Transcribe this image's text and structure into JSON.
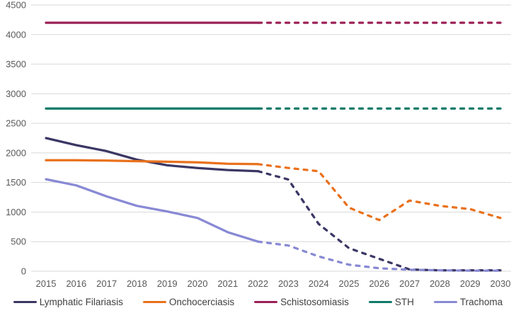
{
  "chart_data": {
    "type": "line",
    "title": "",
    "xlabel": "",
    "ylabel": "",
    "x": [
      2015,
      2016,
      2017,
      2018,
      2019,
      2020,
      2021,
      2022,
      2023,
      2024,
      2025,
      2026,
      2027,
      2028,
      2029,
      2030
    ],
    "x_tick_labels": [
      "2015",
      "2016",
      "2017",
      "2018",
      "2019",
      "2020",
      "2021",
      "2022",
      "2023",
      "2024",
      "2025",
      "2026",
      "2027",
      "2028",
      "2029",
      "2030"
    ],
    "ylim": [
      0,
      4500
    ],
    "ytick_step": 500,
    "y_tick_labels": [
      "0",
      "500",
      "1000",
      "1500",
      "2000",
      "2500",
      "3000",
      "3500",
      "4000",
      "4500"
    ],
    "grid": true,
    "legend_position": "bottom",
    "dashed_from_x": 2022,
    "series": [
      {
        "name": "Lymphatic Filariasis",
        "color": "#3b3764",
        "values": [
          2250,
          2130,
          2030,
          1885,
          1790,
          1745,
          1710,
          1690,
          1550,
          800,
          390,
          210,
          30,
          15,
          15,
          15
        ]
      },
      {
        "name": "Onchocerciasis",
        "color": "#e9711c",
        "values": [
          1875,
          1875,
          1870,
          1860,
          1850,
          1840,
          1815,
          1810,
          1745,
          1690,
          1075,
          865,
          1195,
          1105,
          1050,
          900
        ]
      },
      {
        "name": "Schistosomiasis",
        "color": "#9b2155",
        "values": [
          4200,
          4200,
          4200,
          4200,
          4200,
          4200,
          4200,
          4200,
          4200,
          4200,
          4200,
          4200,
          4200,
          4200,
          4200,
          4200
        ]
      },
      {
        "name": "STH",
        "color": "#107a68",
        "values": [
          2750,
          2750,
          2750,
          2750,
          2750,
          2750,
          2750,
          2750,
          2750,
          2750,
          2750,
          2750,
          2750,
          2750,
          2750,
          2750
        ]
      },
      {
        "name": "Trachoma",
        "color": "#8889d4",
        "values": [
          1555,
          1450,
          1265,
          1105,
          1010,
          900,
          660,
          500,
          435,
          250,
          110,
          50,
          25,
          15,
          10,
          10
        ]
      }
    ]
  },
  "style": {
    "grid_color": "#d9d9d9",
    "axis_text_color": "#595959",
    "legend_text_color": "#3f3f3f",
    "background": "#ffffff"
  }
}
